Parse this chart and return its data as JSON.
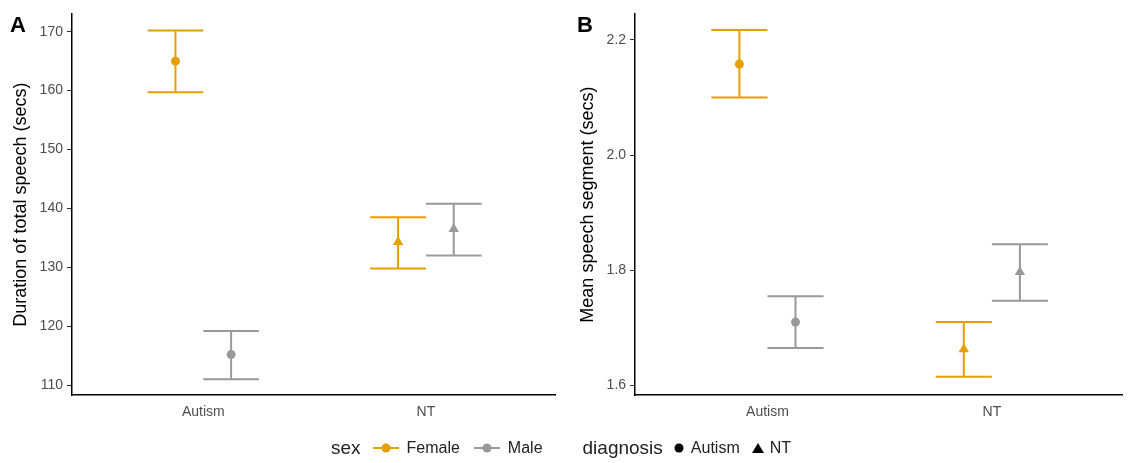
{
  "chart_data": [
    {
      "type": "scatter",
      "title": "A",
      "ylabel": "Duration of total speech (secs)",
      "categories": [
        "Autism",
        "NT"
      ],
      "ylim": [
        108.3,
        173
      ],
      "yticks": [
        110,
        120,
        130,
        140,
        150,
        160,
        170
      ],
      "grid": false,
      "legend": "bottom",
      "legend_title": [
        "sex",
        "diagnosis"
      ],
      "series": [
        {
          "name": "Female",
          "color": "#e69f00",
          "values": [
            165.0,
            134.3
          ],
          "errors": [
            [
              159.7,
              170.2
            ],
            [
              129.8,
              138.5
            ]
          ],
          "marker": [
            "circle",
            "triangle"
          ]
        },
        {
          "name": "Male",
          "color": "#999999",
          "values": [
            115.2,
            136.5
          ],
          "errors": [
            [
              111.0,
              119.2
            ],
            [
              132.0,
              140.8
            ]
          ],
          "marker": [
            "circle",
            "triangle"
          ]
        }
      ]
    },
    {
      "type": "scatter",
      "title": "B",
      "ylabel": "Mean speech segment (secs)",
      "categories": [
        "Autism",
        "NT"
      ],
      "ylim": [
        1.583,
        2.245
      ],
      "yticks": [
        {
          "value": 1.6,
          "label": "1.6"
        },
        {
          "value": 1.8,
          "label": "1.8"
        },
        {
          "value": 2.0,
          "label": "2.0"
        },
        {
          "value": 2.2,
          "label": "2.2"
        }
      ],
      "grid": false,
      "series": [
        {
          "color": "#e69f00",
          "values": [
            2.158,
            1.663
          ],
          "errors": [
            [
              2.1,
              2.217
            ],
            [
              1.615,
              1.71
            ]
          ],
          "marker": [
            "circle",
            "triangle"
          ]
        },
        {
          "color": "#999999",
          "values": [
            1.71,
            1.797
          ],
          "errors": [
            [
              1.665,
              1.755
            ],
            [
              1.747,
              1.845
            ]
          ],
          "marker": [
            "circle",
            "triangle"
          ]
        }
      ]
    }
  ]
}
